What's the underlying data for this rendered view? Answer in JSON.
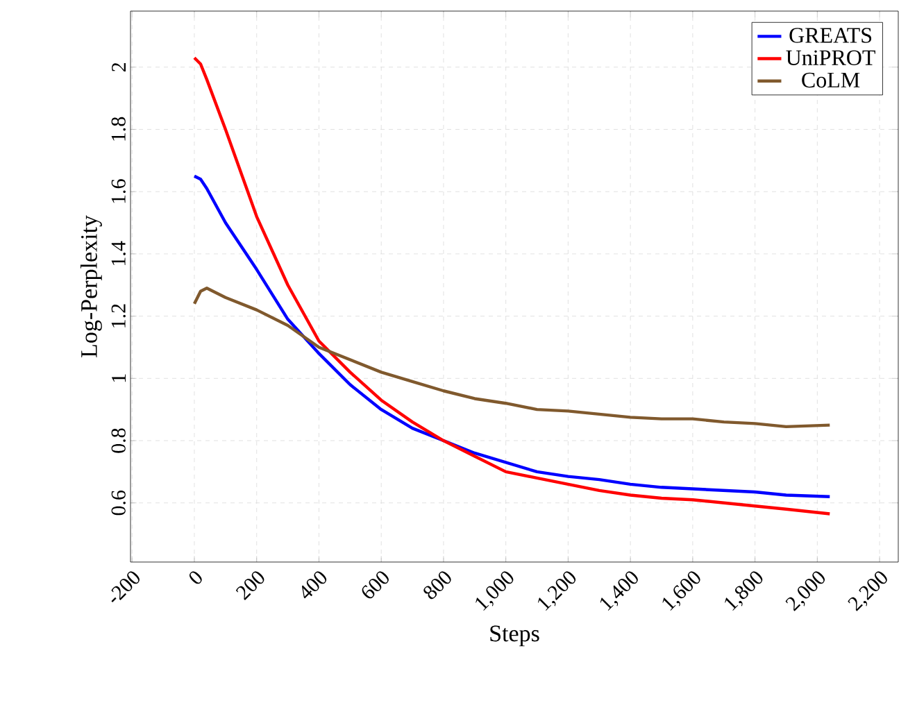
{
  "chart_data": {
    "type": "line",
    "xlabel": "Steps",
    "ylabel": "Log-Perplexity",
    "xlim": [
      -205,
      2260
    ],
    "ylim": [
      0.41,
      2.18
    ],
    "xticks": [
      -200,
      0,
      200,
      400,
      600,
      800,
      {
        "value": 1000,
        "label": "1,000"
      },
      {
        "value": 1200,
        "label": "1,200"
      },
      {
        "value": 1400,
        "label": "1,400"
      },
      {
        "value": 1600,
        "label": "1,600"
      },
      {
        "value": 1800,
        "label": "1,800"
      },
      {
        "value": 2000,
        "label": "2,000"
      },
      {
        "value": 2200,
        "label": "2,200"
      }
    ],
    "yticks": [
      0.6,
      0.8,
      1,
      1.2,
      1.4,
      1.6,
      1.8,
      2
    ],
    "grid": true,
    "legend": "top right",
    "marker": "none",
    "line_style": "solid",
    "x": [
      0,
      20,
      40,
      100,
      200,
      300,
      400,
      500,
      600,
      700,
      800,
      900,
      1000,
      1100,
      1200,
      1300,
      1400,
      1500,
      1600,
      1700,
      1800,
      1900,
      2040
    ],
    "series": [
      {
        "name": "GREATS",
        "color": "#0000ff",
        "values": [
          1.65,
          1.64,
          1.61,
          1.5,
          1.35,
          1.19,
          1.08,
          0.98,
          0.9,
          0.84,
          0.8,
          0.76,
          0.73,
          0.7,
          0.685,
          0.675,
          0.66,
          0.65,
          0.645,
          0.64,
          0.635,
          0.625,
          0.62
        ]
      },
      {
        "name": "UniPROT",
        "color": "#ff0000",
        "values": [
          2.03,
          2.01,
          1.96,
          1.8,
          1.52,
          1.3,
          1.12,
          1.02,
          0.93,
          0.86,
          0.8,
          0.75,
          0.7,
          0.68,
          0.66,
          0.64,
          0.625,
          0.615,
          0.61,
          0.6,
          0.59,
          0.58,
          0.565
        ]
      },
      {
        "name": "CoLM",
        "color": "#80592d",
        "values": [
          1.24,
          1.28,
          1.29,
          1.26,
          1.22,
          1.17,
          1.1,
          1.06,
          1.02,
          0.99,
          0.96,
          0.935,
          0.92,
          0.9,
          0.895,
          0.885,
          0.875,
          0.87,
          0.87,
          0.86,
          0.855,
          0.845,
          0.85
        ]
      }
    ]
  }
}
